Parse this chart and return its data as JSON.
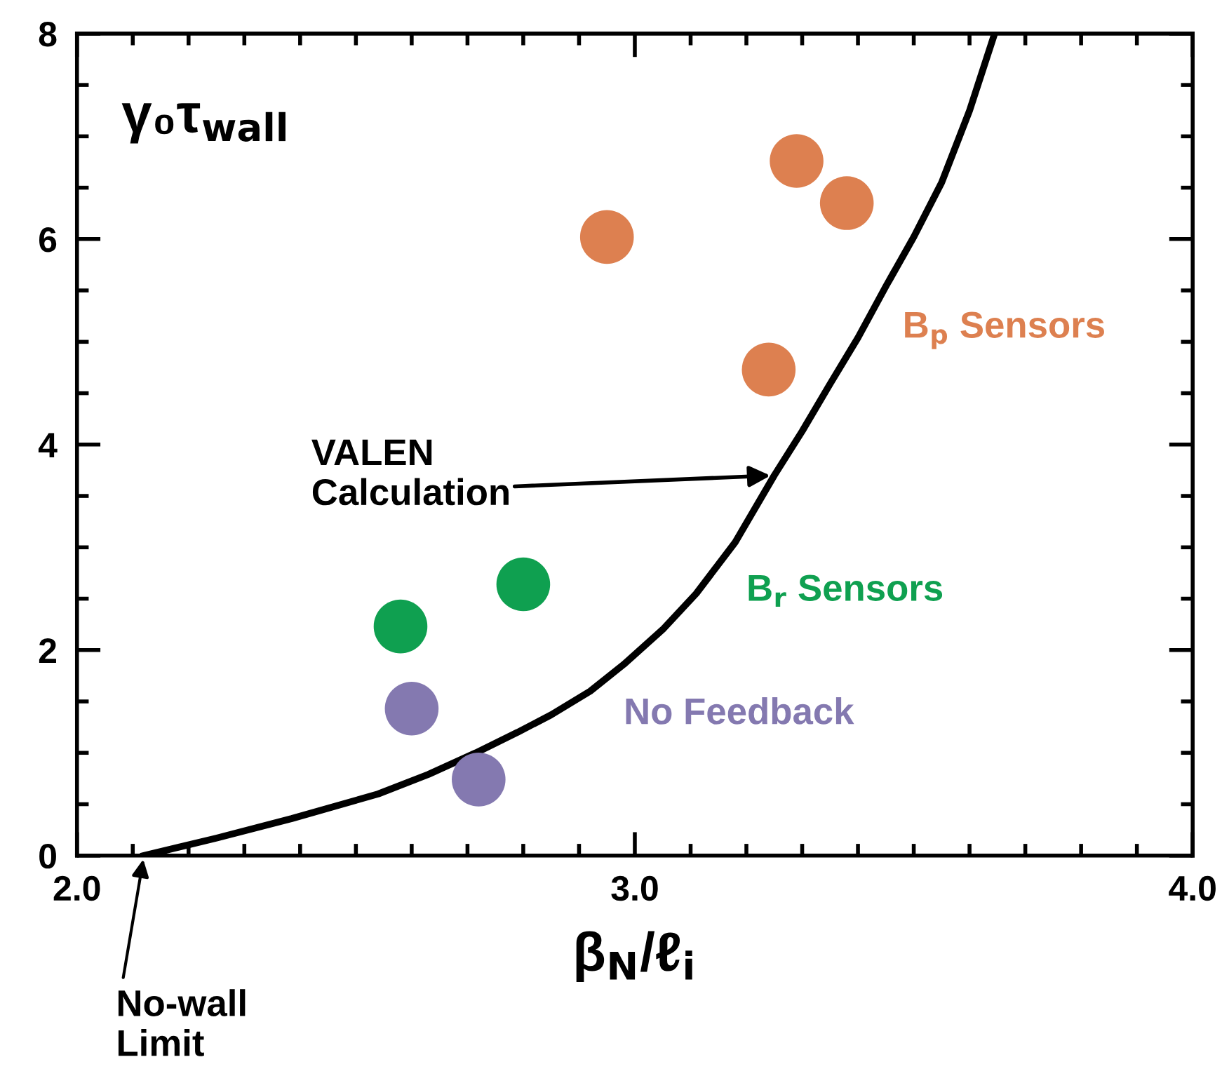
{
  "chart_data": {
    "type": "scatter",
    "xlabel": "β$_{N}$/ℓ$_{i}$",
    "ylabel": "γ₀τ$_{wall}$",
    "xlim": [
      2.0,
      4.0
    ],
    "xticks": [
      {
        "value": 2.0,
        "label": "2.0"
      },
      {
        "value": 3.0,
        "label": "3.0"
      },
      {
        "value": 4.0,
        "label": "4.0"
      }
    ],
    "ylim": [
      0,
      8
    ],
    "yticks": [
      0,
      2,
      4,
      6,
      8
    ],
    "grid": false,
    "legend": false,
    "marker": "circle",
    "series": [
      {
        "name": "B$_{p}$ Sensors",
        "color": "#dd8050",
        "x": [
          3.29,
          3.38,
          2.95,
          3.24
        ],
        "values": [
          6.76,
          6.35,
          6.02,
          4.73
        ]
      },
      {
        "name": "B$_{r}$ Sensors",
        "color": "#0fa050",
        "x": [
          2.58,
          2.8
        ],
        "values": [
          2.23,
          2.64
        ]
      },
      {
        "name": "No Feedback",
        "color": "#8479b0",
        "x": [
          2.6,
          2.72
        ],
        "values": [
          1.43,
          0.74
        ]
      },
      {
        "type": "line",
        "color": "#000000",
        "marker": "none",
        "line_style": "solid",
        "x": [
          2.12,
          2.25,
          2.385,
          2.54,
          2.63,
          2.715,
          2.79,
          2.85,
          2.92,
          2.98,
          3.05,
          3.11,
          3.18,
          3.25,
          3.3,
          3.35,
          3.4,
          3.45,
          3.5,
          3.55,
          3.6,
          3.645
        ],
        "values": [
          0,
          0.17,
          0.36,
          0.6,
          0.79,
          1.0,
          1.2,
          1.37,
          1.6,
          1.86,
          2.2,
          2.55,
          3.05,
          3.7,
          4.13,
          4.59,
          5.04,
          5.54,
          6.02,
          6.55,
          7.25,
          8.0
        ]
      }
    ],
    "annotations": [
      {
        "text": "VALEN\nCalculation",
        "x": 3.25,
        "y": 3.7
      },
      "No-wall\nLimit"
    ]
  }
}
